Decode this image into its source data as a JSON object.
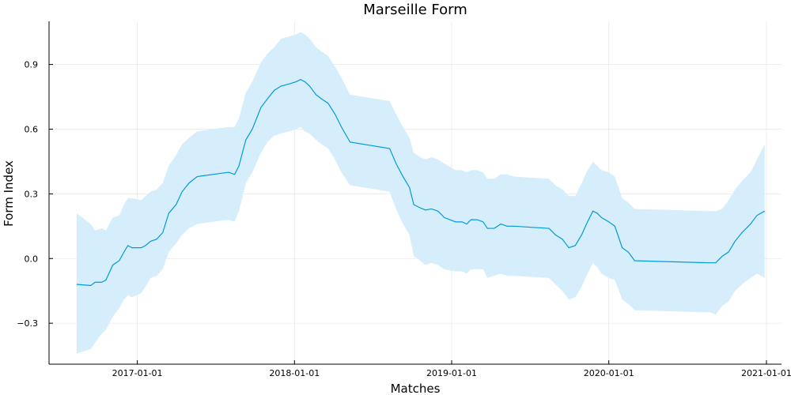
{
  "chart_data": {
    "type": "line",
    "title": "Marseille Form",
    "xlabel": "Matches",
    "ylabel": "Form Index",
    "x_scale": "date",
    "xlim": [
      "2016-06-10",
      "2021-02-05"
    ],
    "ylim": [
      -0.49,
      1.1
    ],
    "grid": true,
    "legend": "none",
    "x_ticks": [
      "2017-01-01",
      "2018-01-01",
      "2019-01-01",
      "2020-01-01",
      "2021-01-01"
    ],
    "y_ticks": [
      -0.3,
      0.0,
      0.3,
      0.6,
      0.9
    ],
    "y_tick_labels": [
      "−0.3",
      "0.0",
      "0.3",
      "0.6",
      "0.9"
    ],
    "colors": {
      "line": "#009AD9",
      "band": "#D6EEFB"
    },
    "series": [
      {
        "x": [
          "2016-08-13",
          "2016-09-15",
          "2016-09-25",
          "2016-10-10",
          "2016-10-20",
          "2016-11-05",
          "2016-11-20",
          "2016-12-01",
          "2016-12-10",
          "2016-12-20",
          "2017-01-10",
          "2017-01-20",
          "2017-02-01",
          "2017-02-15",
          "2017-03-01",
          "2017-03-15",
          "2017-04-01",
          "2017-04-15",
          "2017-05-01",
          "2017-05-20",
          "2017-08-01",
          "2017-08-15",
          "2017-08-25",
          "2017-09-10",
          "2017-09-25",
          "2017-10-15",
          "2017-10-30",
          "2017-11-15",
          "2017-12-01",
          "2017-12-20",
          "2018-01-05",
          "2018-01-15",
          "2018-01-25",
          "2018-02-05",
          "2018-02-20",
          "2018-03-05",
          "2018-03-20",
          "2018-04-05",
          "2018-04-20",
          "2018-05-10",
          "2018-08-10",
          "2018-08-25",
          "2018-09-10",
          "2018-09-25",
          "2018-10-05",
          "2018-10-20",
          "2018-11-01",
          "2018-11-15",
          "2018-11-30",
          "2018-12-15",
          "2019-01-10",
          "2019-01-25",
          "2019-02-05",
          "2019-02-15",
          "2019-03-01",
          "2019-03-15",
          "2019-03-25",
          "2019-04-10",
          "2019-04-25",
          "2019-05-10",
          "2019-05-25",
          "2019-08-15",
          "2019-08-30",
          "2019-09-15",
          "2019-09-30",
          "2019-10-15",
          "2019-10-30",
          "2019-11-10",
          "2019-11-25",
          "2019-12-05",
          "2019-12-15",
          "2020-01-01",
          "2020-01-15",
          "2020-02-01",
          "2020-02-15",
          "2020-03-01",
          "2020-08-25",
          "2020-09-05",
          "2020-09-20",
          "2020-10-05",
          "2020-10-20",
          "2020-11-05",
          "2020-11-25",
          "2020-12-10",
          "2020-12-28"
        ],
        "values": [
          -0.12,
          -0.125,
          -0.11,
          -0.11,
          -0.1,
          -0.03,
          -0.01,
          0.03,
          0.06,
          0.05,
          0.05,
          0.06,
          0.08,
          0.09,
          0.12,
          0.21,
          0.25,
          0.31,
          0.35,
          0.38,
          0.4,
          0.39,
          0.43,
          0.55,
          0.6,
          0.7,
          0.74,
          0.78,
          0.8,
          0.81,
          0.82,
          0.83,
          0.82,
          0.8,
          0.76,
          0.74,
          0.72,
          0.67,
          0.61,
          0.54,
          0.51,
          0.44,
          0.38,
          0.33,
          0.25,
          0.235,
          0.225,
          0.23,
          0.22,
          0.19,
          0.17,
          0.17,
          0.16,
          0.18,
          0.18,
          0.17,
          0.14,
          0.14,
          0.16,
          0.15,
          0.15,
          0.14,
          0.11,
          0.09,
          0.05,
          0.06,
          0.11,
          0.16,
          0.22,
          0.21,
          0.19,
          0.17,
          0.15,
          0.05,
          0.03,
          -0.01,
          -0.02,
          -0.02,
          0.01,
          0.03,
          0.08,
          0.12,
          0.16,
          0.2,
          0.22
        ],
        "lower": [
          -0.44,
          -0.42,
          -0.39,
          -0.35,
          -0.33,
          -0.27,
          -0.23,
          -0.19,
          -0.17,
          -0.18,
          -0.16,
          -0.13,
          -0.09,
          -0.08,
          -0.05,
          0.03,
          0.07,
          0.11,
          0.14,
          0.16,
          0.18,
          0.17,
          0.22,
          0.35,
          0.4,
          0.49,
          0.54,
          0.57,
          0.58,
          0.59,
          0.6,
          0.61,
          0.59,
          0.58,
          0.55,
          0.53,
          0.51,
          0.46,
          0.4,
          0.34,
          0.31,
          0.23,
          0.16,
          0.11,
          0.01,
          -0.01,
          -0.03,
          -0.02,
          -0.03,
          -0.05,
          -0.06,
          -0.06,
          -0.07,
          -0.05,
          -0.05,
          -0.05,
          -0.09,
          -0.08,
          -0.07,
          -0.08,
          -0.08,
          -0.09,
          -0.12,
          -0.15,
          -0.19,
          -0.18,
          -0.13,
          -0.08,
          -0.02,
          -0.04,
          -0.07,
          -0.09,
          -0.1,
          -0.19,
          -0.21,
          -0.24,
          -0.25,
          -0.26,
          -0.22,
          -0.2,
          -0.15,
          -0.12,
          -0.09,
          -0.07,
          -0.09
        ],
        "upper": [
          0.21,
          0.16,
          0.13,
          0.14,
          0.13,
          0.19,
          0.2,
          0.25,
          0.28,
          0.28,
          0.27,
          0.29,
          0.31,
          0.32,
          0.35,
          0.43,
          0.48,
          0.53,
          0.56,
          0.59,
          0.61,
          0.61,
          0.65,
          0.77,
          0.82,
          0.91,
          0.95,
          0.98,
          1.02,
          1.03,
          1.04,
          1.05,
          1.04,
          1.02,
          0.98,
          0.96,
          0.94,
          0.89,
          0.84,
          0.76,
          0.73,
          0.67,
          0.61,
          0.56,
          0.49,
          0.47,
          0.46,
          0.47,
          0.46,
          0.44,
          0.41,
          0.41,
          0.4,
          0.41,
          0.41,
          0.4,
          0.37,
          0.37,
          0.39,
          0.39,
          0.38,
          0.37,
          0.34,
          0.32,
          0.29,
          0.29,
          0.35,
          0.4,
          0.45,
          0.43,
          0.41,
          0.4,
          0.38,
          0.28,
          0.26,
          0.23,
          0.22,
          0.22,
          0.23,
          0.27,
          0.32,
          0.36,
          0.4,
          0.46,
          0.53
        ]
      }
    ]
  }
}
